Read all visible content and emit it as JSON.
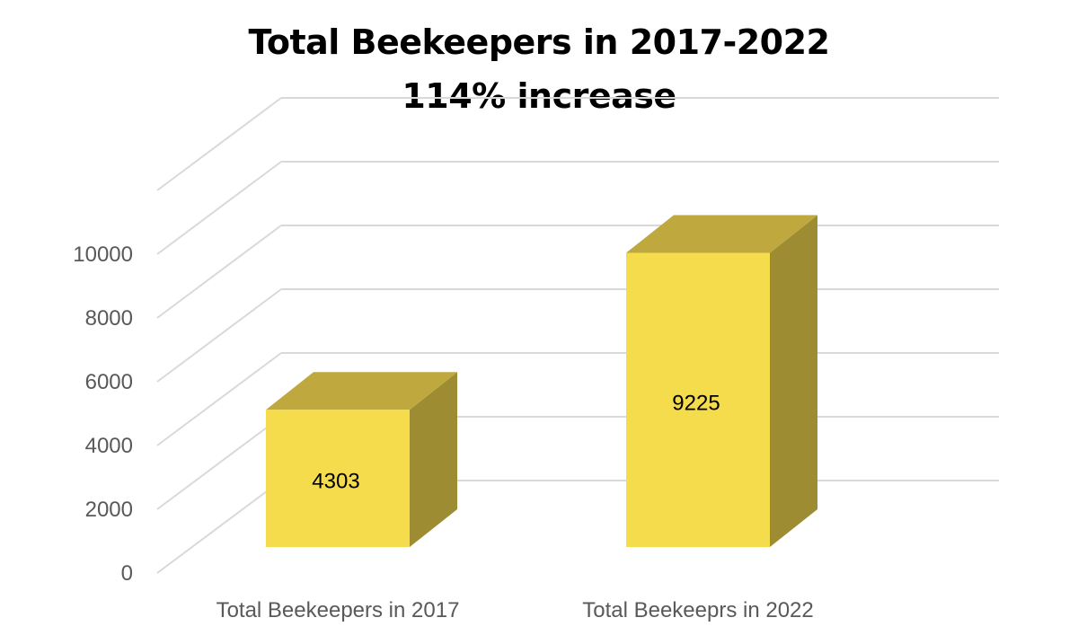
{
  "chart_data": {
    "type": "bar",
    "title": "Total Beekeepers in 2017-2022",
    "subtitle": "114% increase",
    "categories": [
      "Total Beekeepers in 2017",
      "Total Beekeeprs in 2022"
    ],
    "values": [
      4303,
      9225
    ],
    "data_labels": [
      "4303",
      "9225"
    ],
    "xlabel": "",
    "ylabel": "",
    "ylim": [
      0,
      12000
    ],
    "yticks": [
      "0",
      "2000",
      "4000",
      "6000",
      "8000",
      "10000"
    ],
    "grid": true,
    "legend": "none",
    "style": "3d-column",
    "colors": {
      "front": "#F4DC4C",
      "top": "#BFA83E",
      "side": "#9E8C32",
      "grid": "#D9D9D9",
      "text": "#595959"
    }
  }
}
